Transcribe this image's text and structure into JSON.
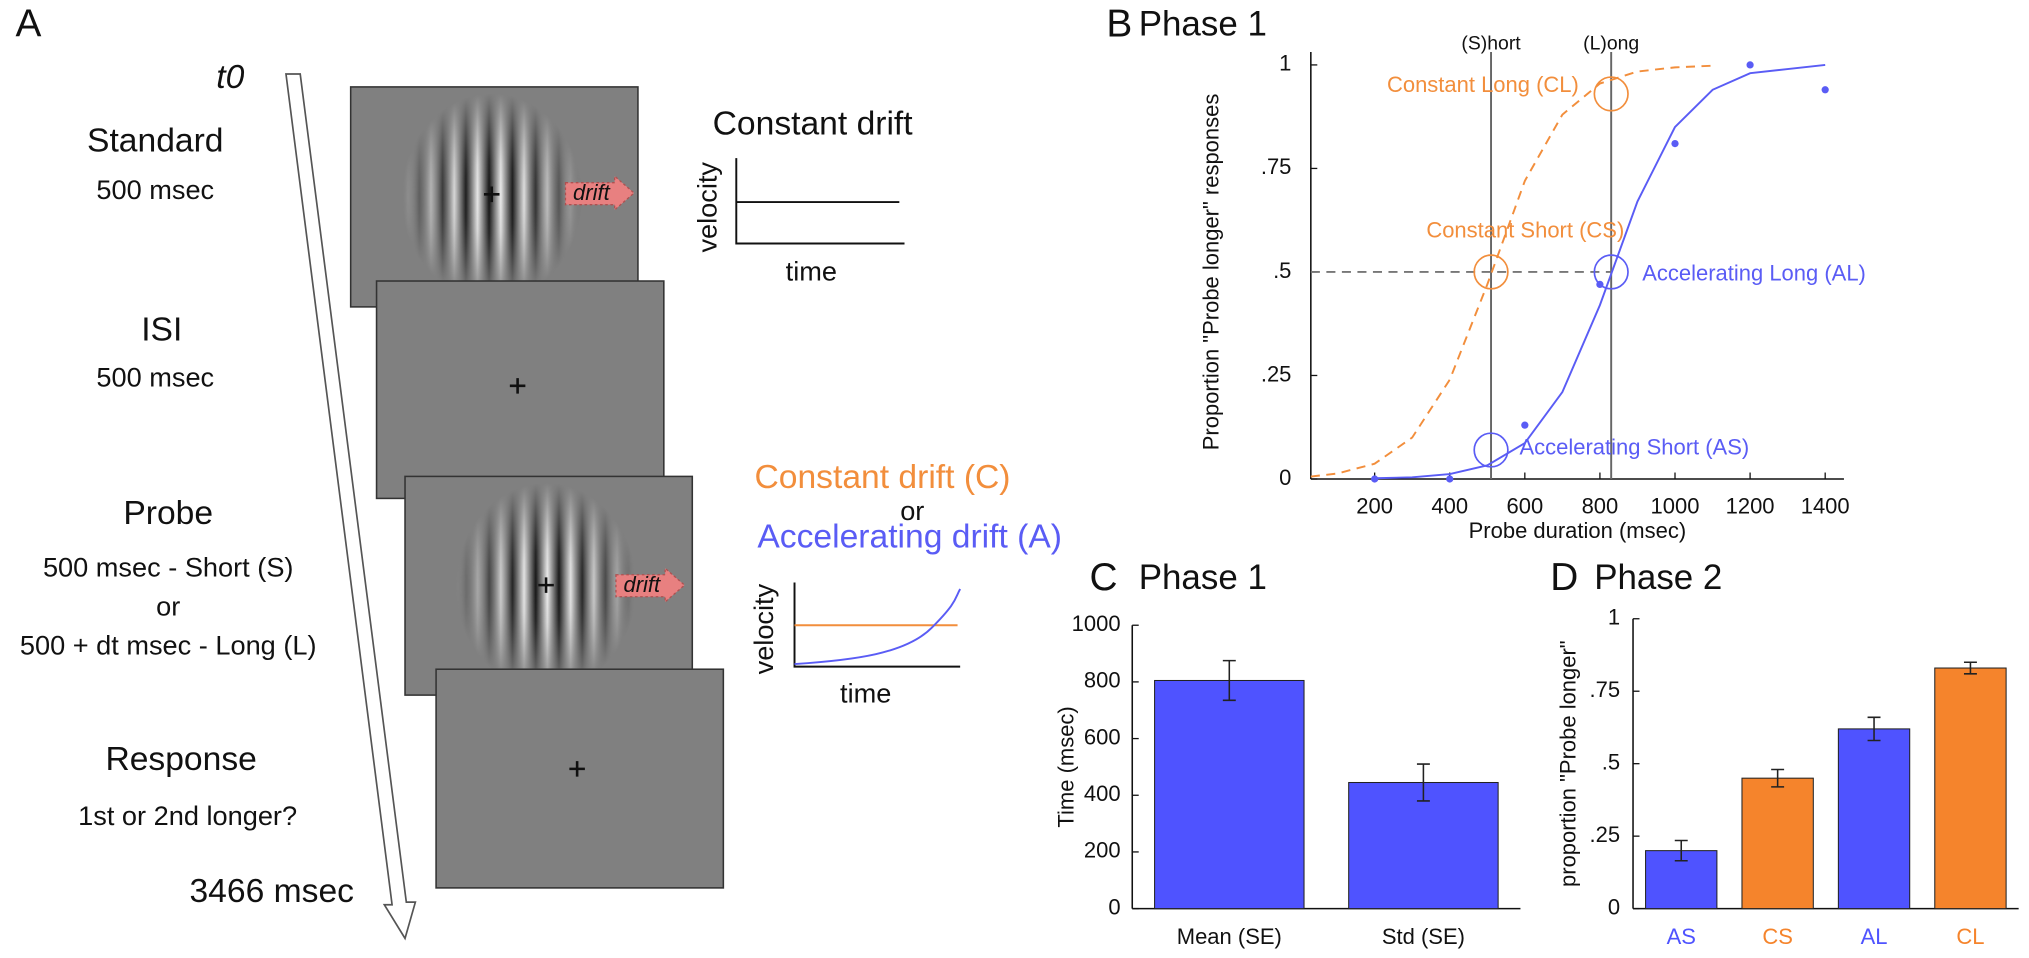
{
  "panel_a": {
    "label": "A",
    "start": "t0",
    "end": "3466 msec",
    "stages": [
      {
        "title": "Standard",
        "lines": [
          "500 msec"
        ]
      },
      {
        "title": "ISI",
        "lines": [
          "500 msec"
        ]
      },
      {
        "title": "Probe",
        "lines": [
          "500 msec - Short (S)",
          "or",
          "500 + dt msec - Long (L)"
        ]
      },
      {
        "title": "Response",
        "lines": [
          "1st or 2nd longer?"
        ]
      }
    ],
    "drift_labels": [
      "drift",
      "drift"
    ],
    "constant_inset": {
      "title": "Constant drift",
      "ylabel": "velocity",
      "xlabel": "time"
    },
    "probe_inset": {
      "title_constant": "Constant drift (C)",
      "or": "or",
      "title_accelerating": "Accelerating drift (A)",
      "ylabel": "velocity",
      "xlabel": "time"
    }
  },
  "chart_data": [
    {
      "type": "line",
      "panel_label": "B",
      "title": "Phase 1",
      "xlabel": "Probe duration (msec)",
      "ylabel": "Proportion \"Probe longer\" responses",
      "xlim": [
        30,
        1450
      ],
      "ylim": [
        0,
        1
      ],
      "xticks": [
        200,
        400,
        600,
        800,
        1000,
        1200,
        1400
      ],
      "yticks": [
        0,
        {
          "value": 0.25,
          "label": ".25"
        },
        {
          "value": 0.5,
          "label": ".5"
        },
        {
          "value": 0.75,
          "label": ".75"
        },
        1
      ],
      "series": [
        {
          "color": "#f28e3c",
          "dashed": true,
          "x": [
            30,
            100,
            200,
            300,
            400,
            500,
            600,
            700,
            800,
            900,
            1000,
            1100
          ],
          "values": [
            0.006,
            0.013,
            0.037,
            0.1,
            0.24,
            0.47,
            0.72,
            0.88,
            0.955,
            0.984,
            0.994,
            0.998
          ]
        },
        {
          "color": "#5a5cf5",
          "dashed": false,
          "x": [
            200,
            300,
            400,
            500,
            600,
            700,
            800,
            900,
            1000,
            1100,
            1200,
            1300,
            1400
          ],
          "values": [
            0.002,
            0.004,
            0.012,
            0.033,
            0.087,
            0.21,
            0.42,
            0.67,
            0.85,
            0.94,
            0.98,
            0.99,
            1.0
          ]
        }
      ],
      "points": {
        "color": "#5a5cf5",
        "x": [
          200,
          400,
          600,
          800,
          1000,
          1200,
          1400
        ],
        "values": [
          0,
          0,
          0.13,
          0.47,
          0.81,
          1.0,
          0.94
        ]
      },
      "reference_lines": [
        {
          "label": "(S)hort",
          "x": 510
        },
        {
          "label": "(L)ong",
          "x": 830
        }
      ],
      "threshold": 0.5,
      "markers": [
        {
          "label": "Constant Long (CL)",
          "x": 830,
          "y": 0.93,
          "color": "#f28e3c"
        },
        {
          "label": "Constant Short (CS)",
          "x": 510,
          "y": 0.5,
          "color": "#f28e3c"
        },
        {
          "label": "Accelerating Long (AL)",
          "x": 830,
          "y": 0.5,
          "color": "#5a5cf5"
        },
        {
          "label": "Accelerating Short (AS)",
          "x": 510,
          "y": 0.07,
          "color": "#5a5cf5"
        }
      ]
    },
    {
      "type": "bar",
      "panel_label": "C",
      "title": "Phase 1",
      "ylabel": "Time (msec)",
      "categories": [
        "Mean (SE)",
        "Std (SE)"
      ],
      "values": [
        805,
        445
      ],
      "errors": [
        70,
        65
      ],
      "color": "#4f53ff",
      "ylim": [
        0,
        1000
      ],
      "yticks": [
        0,
        200,
        400,
        600,
        800,
        1000
      ]
    },
    {
      "type": "bar",
      "panel_label": "D",
      "title": "Phase 2",
      "ylabel": "proportion \"Probe longer\"",
      "categories": [
        "AS",
        "CS",
        "AL",
        "CL"
      ],
      "values": [
        0.2,
        0.45,
        0.62,
        0.83
      ],
      "errors": [
        0.035,
        0.03,
        0.04,
        0.02
      ],
      "colors": [
        "#4f53ff",
        "#f5842c",
        "#4f53ff",
        "#f5842c"
      ],
      "ylim": [
        0,
        1
      ],
      "yticks": [
        0,
        {
          "value": 0.25,
          "label": ".25"
        },
        {
          "value": 0.5,
          "label": ".5"
        },
        {
          "value": 0.75,
          "label": ".75"
        },
        1
      ]
    }
  ]
}
